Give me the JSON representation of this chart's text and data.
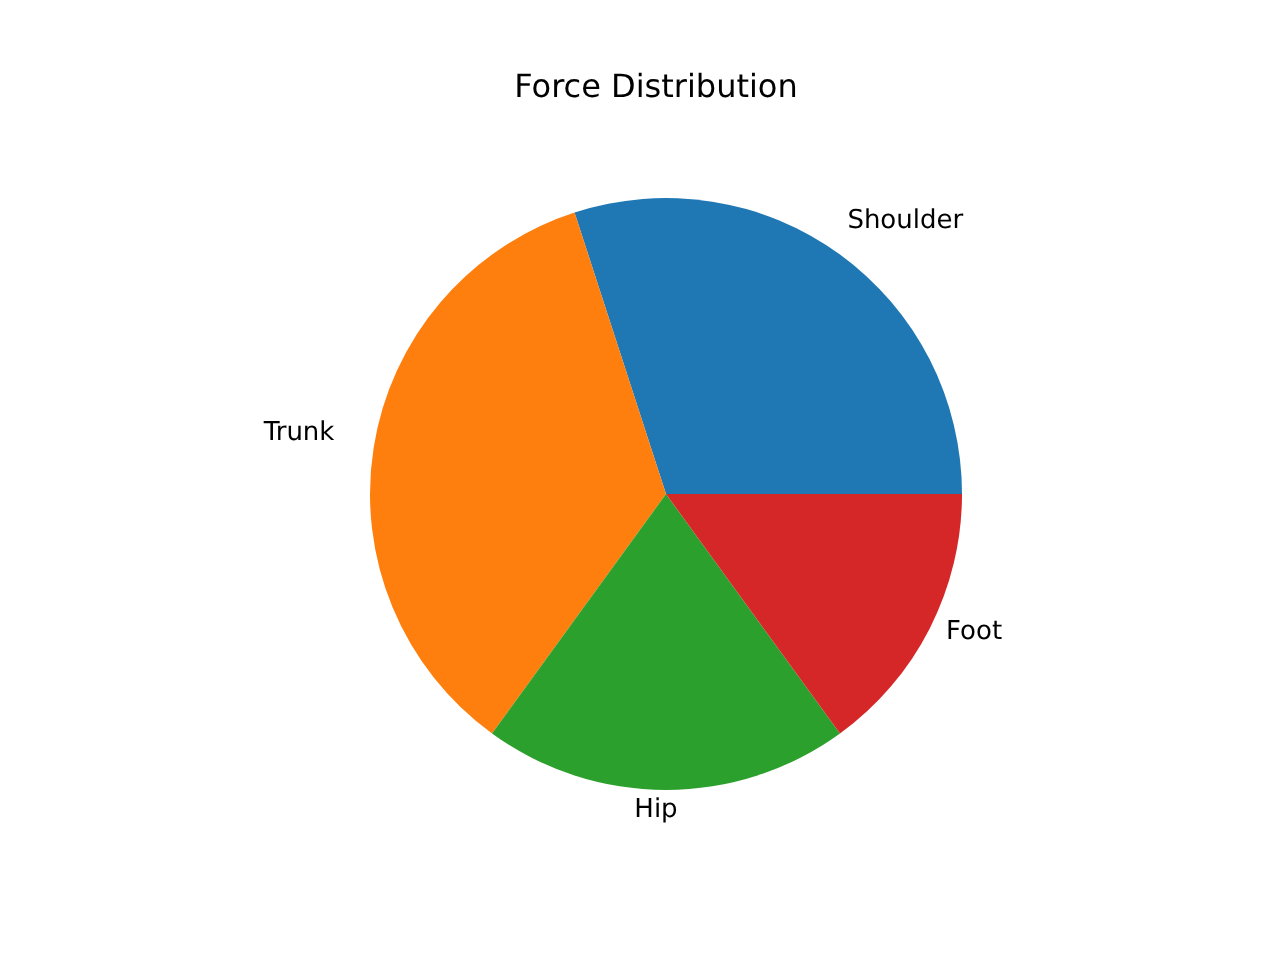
{
  "chart_data": {
    "type": "pie",
    "title": "Force Distribution",
    "categories": [
      "Shoulder",
      "Trunk",
      "Hip",
      "Foot"
    ],
    "values": [
      30,
      35,
      20,
      15
    ],
    "colors": [
      "#1f77b4",
      "#ff7f0e",
      "#2ca02c",
      "#d62728"
    ]
  }
}
